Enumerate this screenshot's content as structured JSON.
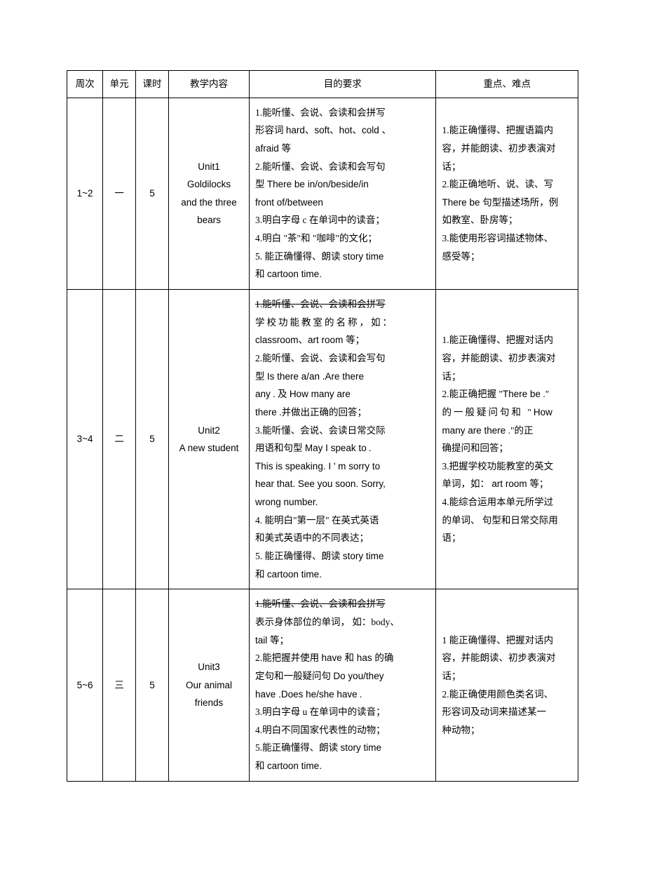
{
  "table": {
    "header": {
      "week": "周次",
      "unit": "单元",
      "periods": "课时",
      "content": "教学内容",
      "goals": "目的要求",
      "key": "重点、难点"
    },
    "rows": [
      {
        "week": "1~2",
        "unit": "一",
        "periods": "5",
        "content_line1": "Unit1",
        "content_line2": "Goldilocks",
        "content_line3": "and the three",
        "content_line4": "bears",
        "goal1": "1.能听懂、会说、会读和会拼写",
        "goal2a": "形容词 ",
        "goal2b": "hard、soft、hot、cold 、",
        "goal3": "afraid 等",
        "goal4": "2.能听懂、会说、会读和会写句",
        "goal5a": "型 ",
        "goal5b": "There be",
        "goal5c": " in/on/beside/in",
        "goal6": "front of/between",
        "goal7a": "3.明白字母 ",
        "goal7b": "c 在单词中的读音；",
        "goal8": "4.明白 \"茶\"和 \"咖啡\"的文化；",
        "goal9a": "5. 能正确懂得、朗读 ",
        "goal9b": "story time",
        "goal10a": "和 ",
        "goal10b": "cartoon time.",
        "key1": "1.能正确懂得、把握语篇内",
        "key2": "容，并能朗读、初步表演对",
        "key3": "话；",
        "key4": "2.能正确地听、说、读、写",
        "key5a": "There be ",
        "key5b": "句型描述场所，例",
        "key6": "如教室、卧房等；",
        "key7": "3.能使用形容词描述物体、",
        "key8": "感受等；"
      },
      {
        "week": "3~4",
        "unit": "二",
        "periods": "5",
        "content_line1": "Unit2",
        "content_line2": "A new student",
        "strike1": "1.能听懂、会说、会读和会拼写",
        "goal1": "学校功能教室的名称，如：",
        "goal2a": "classroom、art room ",
        "goal2b": "等；",
        "goal3": "2.能听懂、会说、会读和会写句",
        "goal4a": "型 ",
        "goal4b": "Is there a/an",
        "goal4c": " .Are there",
        "goal5a": "any",
        "goal5b": " . 及 ",
        "goal5c": "How many",
        "goal5d": " are",
        "goal6a": "there",
        "goal6b": " .并做出正确的回答；",
        "goal7": "3.能听懂、会说、会读日常交际",
        "goal8a": "用语和句型 ",
        "goal8b": "May I speak to",
        "goal8c": " .",
        "goal9a": "This is speaking. I ' m sorry to",
        "goal10": "hear that. See you soon. Sorry,",
        "goal11": "wrong number.",
        "goal12a": "4. 能明白\"第一层\" ",
        "goal12b": "在英式英语",
        "goal13": "和美式英语中的不同表达；",
        "goal14a": "5. 能正确懂得、朗读 ",
        "goal14b": "story time",
        "goal15a": "和 ",
        "goal15b": "cartoon time.",
        "key1": "1.能正确懂得、把握对话内",
        "key2": "容，并能朗读、初步表演对",
        "key3": "话；",
        "key4a": "2.能正确把握 \"",
        "key4b": "There be",
        "key4c": " .\"",
        "key5a": "的一般疑问句和 \"",
        "key5b": "How",
        "key6a": "many",
        "key6b": " are there",
        "key6c": " .\"的正",
        "key7": "确提问和回答；",
        "key8": "3.把握学校功能教室的英文",
        "key9a": "单词，如： ",
        "key9b": "art room 等；",
        "key10": "4.能综合运用本单元所学过",
        "key11": "的单词、 句型和日常交际用",
        "key12": "语；"
      },
      {
        "week": "5~6",
        "unit": "三",
        "periods": "5",
        "content_line1": "Unit3",
        "content_line2": "Our animal",
        "content_line3": "friends",
        "strike1": "1.能听懂、会说、会读和会拼写",
        "goal1a": "表示身体部位的单词， ",
        "goal1b": "如：body、",
        "goal2a": "tail ",
        "goal2b": "等；",
        "goal3a": "2.能把握并使用 ",
        "goal3b": "have 和 has 的确",
        "goal4a": "定句和一般疑问句 ",
        "goal4b": "Do you/they",
        "goal5a": "have",
        "goal5b": " .Does he/she have",
        "goal5c": " .",
        "goal6a": "3.明白字母 ",
        "goal6b": "u 在单词中的读音；",
        "goal7": "4.明白不同国家代表性的动物；",
        "goal8a": "5.能正确懂得、朗读 ",
        "goal8b": "story time",
        "goal9a": "和 ",
        "goal9b": "cartoon time.",
        "key1": "1 能正确懂得、把握对话内",
        "key2": "容，并能朗读、初步表演对",
        "key3": "话；",
        "key4": "2.能正确使用颜色类名词、",
        "key5": "形容词及动词来描述某一",
        "key6": "种动物；"
      }
    ]
  }
}
